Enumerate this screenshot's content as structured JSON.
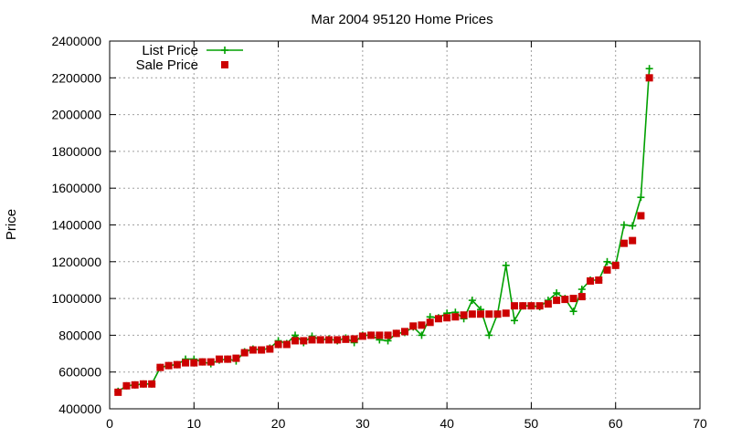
{
  "chart_data": {
    "type": "line",
    "title": "Mar 2004 95120 Home Prices",
    "xlabel": "",
    "ylabel": "Price",
    "xlim": [
      0,
      70
    ],
    "ylim": [
      400000,
      2400000
    ],
    "xticks": [
      0,
      10,
      20,
      30,
      40,
      50,
      60,
      70
    ],
    "yticks": [
      400000,
      600000,
      800000,
      1000000,
      1200000,
      1400000,
      1600000,
      1800000,
      2000000,
      2200000,
      2400000
    ],
    "grid": true,
    "legend_position": "top-left",
    "series": [
      {
        "name": "List Price",
        "style": "line-plus",
        "color": "#00a000",
        "x": [
          1,
          2,
          3,
          4,
          5,
          6,
          7,
          8,
          9,
          10,
          11,
          12,
          13,
          14,
          15,
          16,
          17,
          18,
          19,
          20,
          21,
          22,
          23,
          24,
          25,
          26,
          27,
          28,
          29,
          30,
          31,
          32,
          33,
          34,
          35,
          36,
          37,
          38,
          39,
          40,
          41,
          42,
          43,
          44,
          45,
          46,
          47,
          48,
          49,
          50,
          51,
          52,
          53,
          54,
          55,
          56,
          57,
          58,
          59,
          60,
          61,
          62,
          63,
          64
        ],
        "values": [
          495000,
          525000,
          530000,
          535000,
          535000,
          625000,
          635000,
          640000,
          670000,
          670000,
          655000,
          645000,
          665000,
          670000,
          660000,
          710000,
          725000,
          720000,
          730000,
          770000,
          755000,
          800000,
          760000,
          795000,
          775000,
          780000,
          770000,
          785000,
          760000,
          800000,
          800000,
          775000,
          770000,
          810000,
          815000,
          845000,
          800000,
          900000,
          895000,
          920000,
          925000,
          890000,
          990000,
          940000,
          800000,
          915000,
          1180000,
          880000,
          960000,
          960000,
          955000,
          990000,
          1030000,
          1000000,
          930000,
          1050000,
          1100000,
          1100000,
          1200000,
          1180000,
          1400000,
          1395000,
          1550000,
          2250000
        ]
      },
      {
        "name": "Sale Price",
        "style": "square",
        "color": "#cc0000",
        "x": [
          1,
          2,
          3,
          4,
          5,
          6,
          7,
          8,
          9,
          10,
          11,
          12,
          13,
          14,
          15,
          16,
          17,
          18,
          19,
          20,
          21,
          22,
          23,
          24,
          25,
          26,
          27,
          28,
          29,
          30,
          31,
          32,
          33,
          34,
          35,
          36,
          37,
          38,
          39,
          40,
          41,
          42,
          43,
          44,
          45,
          46,
          47,
          48,
          49,
          50,
          51,
          52,
          53,
          54,
          55,
          56,
          57,
          58,
          59,
          60,
          61,
          62,
          63,
          64
        ],
        "values": [
          490000,
          525000,
          530000,
          535000,
          535000,
          625000,
          635000,
          640000,
          650000,
          650000,
          655000,
          655000,
          670000,
          670000,
          675000,
          705000,
          720000,
          720000,
          725000,
          750000,
          750000,
          770000,
          770000,
          775000,
          775000,
          775000,
          775000,
          778000,
          780000,
          795000,
          800000,
          800000,
          800000,
          810000,
          820000,
          850000,
          855000,
          870000,
          890000,
          895000,
          900000,
          910000,
          915000,
          915000,
          915000,
          915000,
          920000,
          960000,
          960000,
          960000,
          960000,
          970000,
          990000,
          995000,
          1000000,
          1010000,
          1095000,
          1100000,
          1155000,
          1180000,
          1300000,
          1315000,
          1450000,
          2200000
        ]
      }
    ]
  }
}
